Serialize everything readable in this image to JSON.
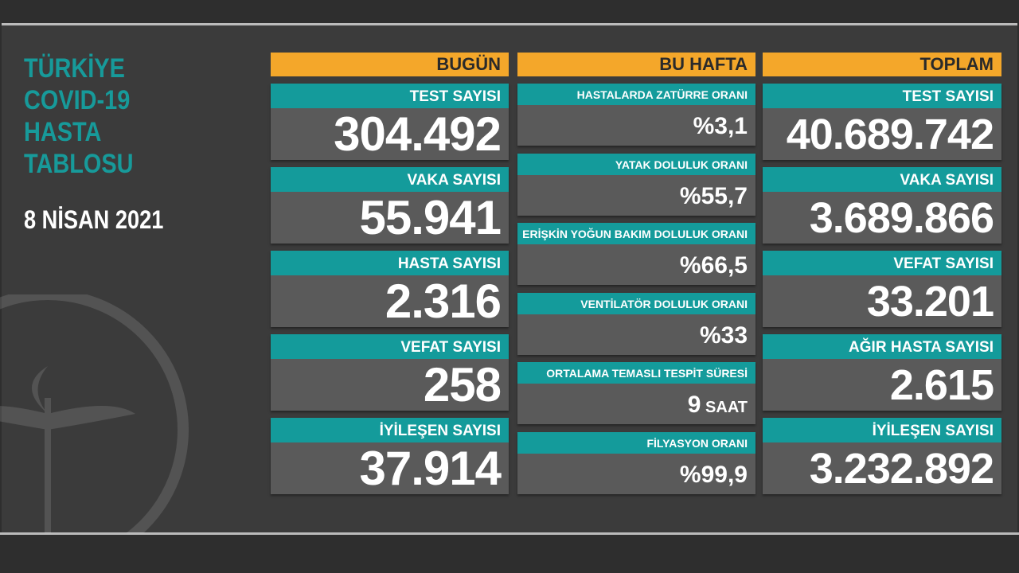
{
  "title_lines": [
    "TÜRKİYE",
    "COVID-19",
    "HASTA",
    "TABLOSU"
  ],
  "date": "8 NİSAN 2021",
  "colors": {
    "accent_orange": "#f4a72a",
    "teal": "#149b9b",
    "card": "#5a5a5a",
    "background": "#3b3b3b"
  },
  "icons": [
    "ministry-of-health-emblem-icon"
  ],
  "today": {
    "header": "BUGÜN",
    "items": [
      {
        "label": "TEST SAYISI",
        "value": "304.492"
      },
      {
        "label": "VAKA SAYISI",
        "value": "55.941"
      },
      {
        "label": "HASTA SAYISI",
        "value": "2.316"
      },
      {
        "label": "VEFAT SAYISI",
        "value": "258"
      },
      {
        "label": "İYİLEŞEN SAYISI",
        "value": "37.914"
      }
    ]
  },
  "week": {
    "header": "BU HAFTA",
    "items": [
      {
        "label": "HASTALARDA ZATÜRRE ORANI",
        "value": "%3,1",
        "unit": ""
      },
      {
        "label": "YATAK DOLULUK ORANI",
        "value": "%55,7",
        "unit": ""
      },
      {
        "label": "ERİŞKİN YOĞUN BAKIM DOLULUK ORANI",
        "value": "%66,5",
        "unit": ""
      },
      {
        "label": "VENTİLATÖR DOLULUK ORANI",
        "value": "%33",
        "unit": ""
      },
      {
        "label": "ORTALAMA TEMASLI TESPİT SÜRESİ",
        "value": "9",
        "unit": " SAAT"
      },
      {
        "label": "FİLYASYON ORANI",
        "value": "%99,9",
        "unit": ""
      }
    ]
  },
  "total": {
    "header": "TOPLAM",
    "items": [
      {
        "label": "TEST SAYISI",
        "value": "40.689.742"
      },
      {
        "label": "VAKA SAYISI",
        "value": "3.689.866"
      },
      {
        "label": "VEFAT SAYISI",
        "value": "33.201"
      },
      {
        "label": "AĞIR HASTA SAYISI",
        "value": "2.615"
      },
      {
        "label": "İYİLEŞEN SAYISI",
        "value": "3.232.892"
      }
    ]
  }
}
